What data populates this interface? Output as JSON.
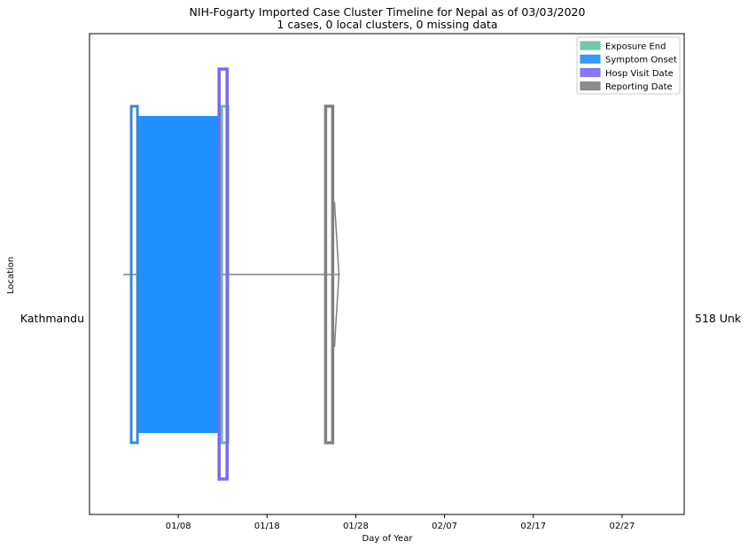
{
  "chart_data": {
    "type": "timeline",
    "title": "NIH-Fogarty Imported Case Cluster Timeline for Nepal as of 03/03/2020",
    "subtitle": "1 cases, 0 local clusters, 0 missing data",
    "xlabel": "Day of Year",
    "ylabel": "Location",
    "xlim": [
      "2019-12-29",
      "2020-03-05"
    ],
    "x_ticks": [
      {
        "date": "2020-01-08",
        "label": "01/08"
      },
      {
        "date": "2020-01-18",
        "label": "01/18"
      },
      {
        "date": "2020-01-28",
        "label": "01/28"
      },
      {
        "date": "2020-02-07",
        "label": "02/07"
      },
      {
        "date": "2020-02-17",
        "label": "02/17"
      },
      {
        "date": "2020-02-27",
        "label": "02/27"
      }
    ],
    "location_label": "Kathmandu",
    "case_label": "518 Unk",
    "legend": {
      "position": "upper right",
      "entries": [
        {
          "name": "Exposure End",
          "color": "#66c2a5"
        },
        {
          "name": "Symptom Onset",
          "color": "#1e90ff"
        },
        {
          "name": "Hosp Visit Date",
          "color": "#7b68ee"
        },
        {
          "name": "Reporting Date",
          "color": "#808080"
        }
      ]
    },
    "events": {
      "exposure_end": "2020-01-13",
      "symptom_onset": "2020-01-03",
      "symptom_span_end": "2020-01-13",
      "hosp_visit": "2020-01-13",
      "reporting": "2020-01-25"
    },
    "colors": {
      "symptom_fill": "#1e90ff",
      "symptom_edge": "#3a86d6",
      "exposure_edge": "#66c2a5",
      "hosp_edge": "#7b68ee",
      "reporting_edge": "#808080",
      "whisker": "#808080"
    }
  }
}
